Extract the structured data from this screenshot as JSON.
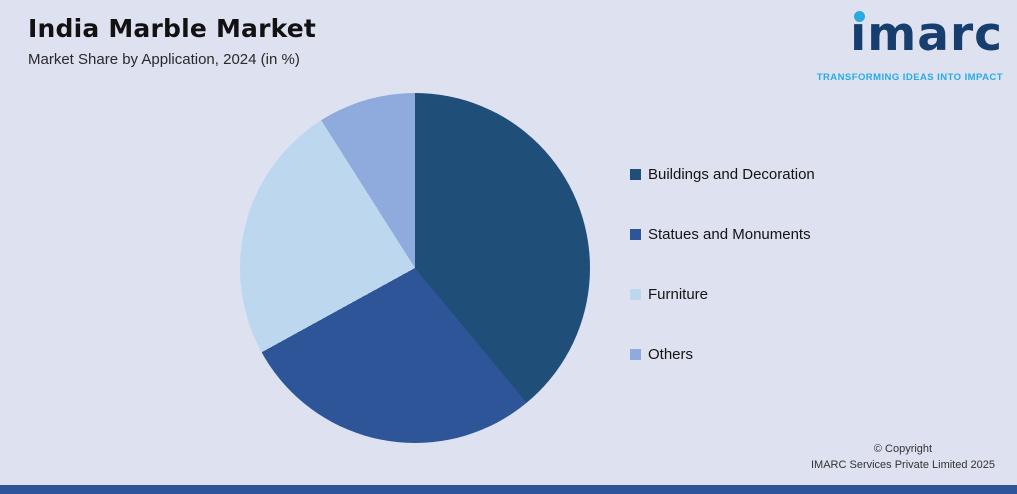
{
  "header": {
    "title": "India Marble Market",
    "subtitle": "Market Share by Application, 2024 (in %)"
  },
  "logo": {
    "wordmark": "imarc",
    "tagline": "TRANSFORMING IDEAS INTO IMPACT",
    "wordmark_color": "#173e6e",
    "accent_color": "#29abe2"
  },
  "chart_data": {
    "type": "pie",
    "title": "India Marble Market",
    "subtitle": "Market Share by Application, 2024 (in %)",
    "categories": [
      "Buildings and Decoration",
      "Statues and Monuments",
      "Furniture",
      "Others"
    ],
    "values": [
      39,
      28,
      24,
      9
    ],
    "colors": [
      "#1f4e79",
      "#2e5597",
      "#bdd7ee",
      "#8faadc"
    ],
    "start_angle_deg": 0,
    "direction": "clockwise",
    "legend_position": "right",
    "data_labels_shown": false,
    "background_color": "#dde1f0"
  },
  "footer": {
    "copyright_line1": "© Copyright",
    "copyright_line2": "IMARC Services Private Limited 2025"
  }
}
